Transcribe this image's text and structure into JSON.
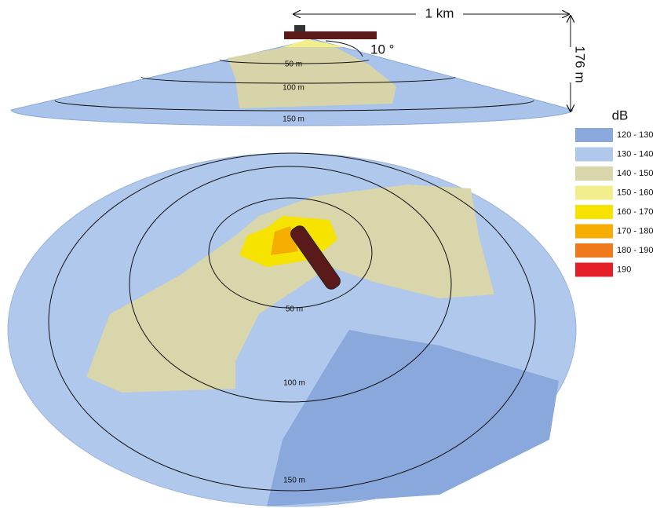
{
  "scale": {
    "width_label": "1 km",
    "depth_label": "176 m",
    "angle_label": "10 °"
  },
  "side_view": {
    "range_labels": [
      "50 m",
      "100 m",
      "150 m"
    ]
  },
  "plan_view": {
    "range_labels": [
      "50 m",
      "100 m",
      "150 m"
    ]
  },
  "legend": {
    "title": "dB",
    "items": [
      {
        "label": "120 - 130",
        "color": "#8aa8dc"
      },
      {
        "label": "130 - 140",
        "color": "#b0c8ec"
      },
      {
        "label": "140 - 150",
        "color": "#d8d6aa"
      },
      {
        "label": "150 - 160",
        "color": "#f3ee8c"
      },
      {
        "label": "160 - 170",
        "color": "#f6e400"
      },
      {
        "label": "170 - 180",
        "color": "#f4ad00"
      },
      {
        "label": "180 - 190",
        "color": "#ee7a1c"
      },
      {
        "label": "190",
        "color": "#e31e26"
      }
    ]
  }
}
